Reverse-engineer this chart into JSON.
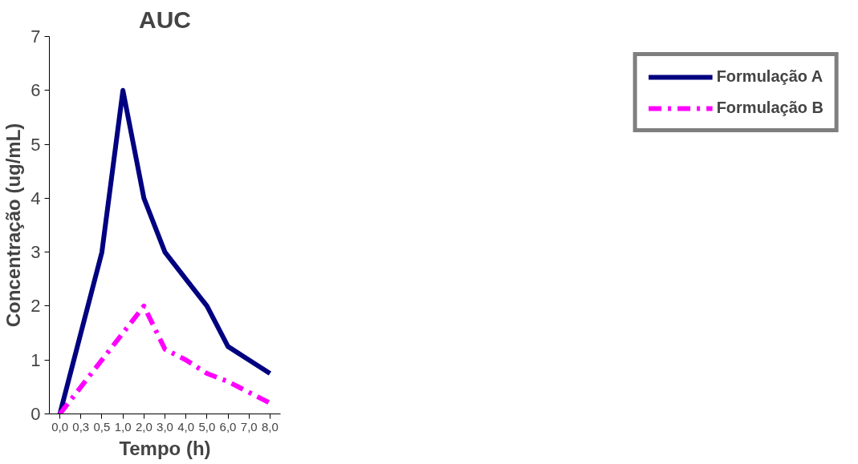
{
  "chart_data": {
    "type": "line",
    "title": "AUC",
    "xlabel": "Tempo (h)",
    "ylabel": "Concentração (ug/mL)",
    "categories": [
      "0,0",
      "0,3",
      "0,5",
      "1,0",
      "2,0",
      "3,0",
      "4,0",
      "5,0",
      "6,0",
      "7,0",
      "8,0"
    ],
    "series": [
      {
        "name": "Formulação A",
        "color": "#000080",
        "line_style": "solid",
        "values": [
          0,
          1.5,
          3,
          6,
          4,
          3,
          2.5,
          2,
          1.25,
          1,
          0.75
        ]
      },
      {
        "name": "Formulação B",
        "color": "#ff00ff",
        "line_style": "dashdot",
        "values": [
          0,
          0.5,
          1,
          1.5,
          2,
          1.2,
          1,
          0.75,
          0.6,
          0.4,
          0.2
        ]
      }
    ],
    "ylim": [
      0,
      7
    ],
    "yticks": [
      0,
      1,
      2,
      3,
      4,
      5,
      6,
      7
    ],
    "grid": false,
    "legend": "right",
    "marker": "none"
  }
}
